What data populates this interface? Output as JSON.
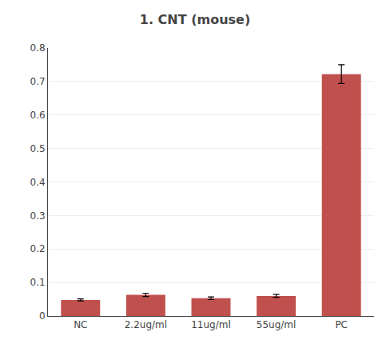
{
  "chart_data": {
    "type": "bar",
    "title": "1. CNT (mouse)",
    "categories": [
      "NC",
      "2.2ug/ml",
      "11ug/ml",
      "55ug/ml",
      "PC"
    ],
    "values": [
      0.048,
      0.063,
      0.053,
      0.06,
      0.722
    ],
    "errors": [
      0.003,
      0.005,
      0.004,
      0.004,
      0.028
    ],
    "color": "#c0504d",
    "ylim": [
      0,
      0.8
    ],
    "yticks": [
      0,
      0.1,
      0.2,
      0.3,
      0.4,
      0.5,
      0.6,
      0.7,
      0.8
    ],
    "grid": true
  }
}
